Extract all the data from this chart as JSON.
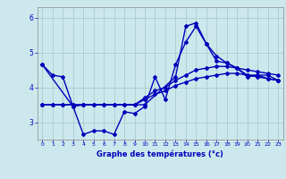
{
  "title": "",
  "xlabel": "Graphe des températures (°c)",
  "background_color": "#cce8ec",
  "grid_color": "#aacccc",
  "line_color": "#0000bb",
  "xlim": [
    -0.5,
    23.5
  ],
  "ylim": [
    2.5,
    6.3
  ],
  "yticks": [
    3,
    4,
    5,
    6
  ],
  "xticks": [
    0,
    1,
    2,
    3,
    4,
    5,
    6,
    7,
    8,
    9,
    10,
    11,
    12,
    13,
    14,
    15,
    16,
    17,
    18,
    19,
    20,
    21,
    22,
    23
  ],
  "lines": [
    {
      "x": [
        0,
        1,
        2,
        3,
        4,
        5,
        6,
        7,
        8,
        9,
        10,
        11,
        12,
        13,
        14,
        15,
        16,
        17,
        18,
        19,
        20,
        21,
        22,
        23
      ],
      "y": [
        4.65,
        4.35,
        4.3,
        3.45,
        2.65,
        2.75,
        2.75,
        2.65,
        3.3,
        3.25,
        3.45,
        4.3,
        3.65,
        4.65,
        5.3,
        5.75,
        5.25,
        4.9,
        4.7,
        4.55,
        4.35,
        4.35,
        4.25,
        4.2
      ]
    },
    {
      "x": [
        0,
        1,
        2,
        3,
        4,
        5,
        6,
        7,
        8,
        9,
        10,
        11,
        12,
        13,
        14,
        15,
        16,
        17,
        18,
        19,
        20,
        21,
        22,
        23
      ],
      "y": [
        3.5,
        3.5,
        3.5,
        3.5,
        3.5,
        3.5,
        3.5,
        3.5,
        3.5,
        3.5,
        3.65,
        3.8,
        3.9,
        4.05,
        4.15,
        4.25,
        4.3,
        4.35,
        4.4,
        4.4,
        4.35,
        4.3,
        4.25,
        4.2
      ]
    },
    {
      "x": [
        0,
        1,
        2,
        3,
        4,
        5,
        6,
        7,
        8,
        9,
        10,
        11,
        12,
        13,
        14,
        15,
        16,
        17,
        18,
        19,
        20,
        21,
        22,
        23
      ],
      "y": [
        3.5,
        3.5,
        3.5,
        3.5,
        3.5,
        3.5,
        3.5,
        3.5,
        3.5,
        3.5,
        3.7,
        3.9,
        4.0,
        4.2,
        4.35,
        4.5,
        4.55,
        4.6,
        4.6,
        4.55,
        4.5,
        4.45,
        4.4,
        4.35
      ]
    },
    {
      "x": [
        0,
        3,
        4,
        10,
        13,
        14,
        15,
        16,
        17,
        18,
        19,
        20,
        21,
        22,
        23
      ],
      "y": [
        4.65,
        3.45,
        3.5,
        3.5,
        4.3,
        5.75,
        5.85,
        5.25,
        4.75,
        4.7,
        4.55,
        4.3,
        4.35,
        4.35,
        4.2
      ]
    }
  ],
  "marker": "D",
  "markersize": 2.0,
  "linewidth": 1.0
}
